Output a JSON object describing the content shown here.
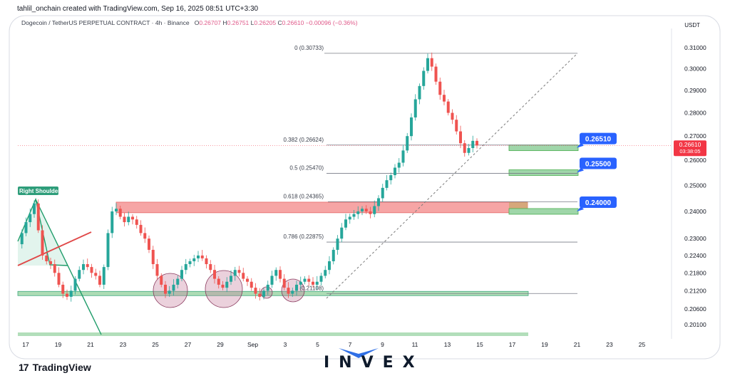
{
  "header": {
    "author_line": "tahlil_onchain created with TradingView.com, Sep 16, 2025 08:51 UTC+3:30",
    "symbol": "Dogecoin / TetherUS PERPETUAL CONTRACT · 4h · Binance",
    "ohlc": {
      "o_label": "O",
      "o": "0.26707",
      "h_label": "H",
      "h": "0.26751",
      "l_label": "L",
      "l": "0.26205",
      "c_label": "C",
      "c": "0.26610",
      "change": "−0.00096 (−0.36%)"
    },
    "currency": "USDT"
  },
  "chart_data": {
    "type": "candlestick",
    "timeframe": "4h",
    "y_axis": {
      "scale": "log",
      "range": [
        0.1975,
        0.3195
      ],
      "ticks": [
        "0.31000",
        "0.30000",
        "0.29000",
        "0.28000",
        "0.27000",
        "0.26000",
        "0.25000",
        "0.24000",
        "0.23000",
        "0.22400",
        "0.21800",
        "0.21200",
        "0.20600",
        "0.20100"
      ]
    },
    "x_axis": {
      "ticks": [
        "17",
        "19",
        "21",
        "23",
        "25",
        "27",
        "29",
        "Sep",
        "3",
        "5",
        "7",
        "9",
        "11",
        "13",
        "15",
        "17",
        "19",
        "21",
        "23",
        "25"
      ]
    },
    "current_price": {
      "value": "0.26610",
      "countdown": "03:38:05"
    },
    "close_path": [
      [
        0,
        0.228
      ],
      [
        1,
        0.232
      ],
      [
        2,
        0.236
      ],
      [
        3,
        0.239
      ],
      [
        4,
        0.243
      ],
      [
        5,
        0.233
      ],
      [
        6,
        0.224
      ],
      [
        7,
        0.222
      ],
      [
        8,
        0.221
      ],
      [
        9,
        0.218
      ],
      [
        10,
        0.214
      ],
      [
        11,
        0.211
      ],
      [
        12,
        0.21
      ],
      [
        13,
        0.212
      ],
      [
        14,
        0.216
      ],
      [
        15,
        0.219
      ],
      [
        16,
        0.221
      ],
      [
        17,
        0.22
      ],
      [
        18,
        0.218
      ],
      [
        19,
        0.217
      ],
      [
        20,
        0.214
      ],
      [
        21,
        0.22
      ],
      [
        22,
        0.232
      ],
      [
        23,
        0.24
      ],
      [
        24,
        0.241
      ],
      [
        25,
        0.238
      ],
      [
        26,
        0.236
      ],
      [
        27,
        0.238
      ],
      [
        28,
        0.237
      ],
      [
        29,
        0.235
      ],
      [
        30,
        0.232
      ],
      [
        31,
        0.23
      ],
      [
        32,
        0.226
      ],
      [
        33,
        0.221
      ],
      [
        34,
        0.217
      ],
      [
        35,
        0.214
      ],
      [
        36,
        0.211
      ],
      [
        37,
        0.212
      ],
      [
        38,
        0.214
      ],
      [
        39,
        0.216
      ],
      [
        40,
        0.219
      ],
      [
        41,
        0.221
      ],
      [
        42,
        0.222
      ],
      [
        43,
        0.223
      ],
      [
        44,
        0.224
      ],
      [
        45,
        0.223
      ],
      [
        46,
        0.221
      ],
      [
        47,
        0.219
      ],
      [
        48,
        0.216
      ],
      [
        49,
        0.214
      ],
      [
        50,
        0.213
      ],
      [
        51,
        0.215
      ],
      [
        52,
        0.217
      ],
      [
        53,
        0.219
      ],
      [
        54,
        0.218
      ],
      [
        55,
        0.216
      ],
      [
        56,
        0.215
      ],
      [
        57,
        0.213
      ],
      [
        58,
        0.211
      ],
      [
        59,
        0.21
      ],
      [
        60,
        0.212
      ],
      [
        61,
        0.214
      ],
      [
        62,
        0.217
      ],
      [
        63,
        0.219
      ],
      [
        64,
        0.216
      ],
      [
        65,
        0.213
      ],
      [
        66,
        0.211
      ],
      [
        67,
        0.212
      ],
      [
        68,
        0.214
      ],
      [
        69,
        0.215
      ],
      [
        70,
        0.216
      ],
      [
        71,
        0.215
      ],
      [
        72,
        0.214
      ],
      [
        73,
        0.215
      ],
      [
        74,
        0.217
      ],
      [
        75,
        0.219
      ],
      [
        76,
        0.222
      ],
      [
        77,
        0.226
      ],
      [
        78,
        0.23
      ],
      [
        79,
        0.234
      ],
      [
        80,
        0.237
      ],
      [
        81,
        0.238
      ],
      [
        82,
        0.239
      ],
      [
        83,
        0.24
      ],
      [
        84,
        0.241
      ],
      [
        85,
        0.24
      ],
      [
        86,
        0.239
      ],
      [
        87,
        0.242
      ],
      [
        88,
        0.245
      ],
      [
        89,
        0.249
      ],
      [
        90,
        0.252
      ],
      [
        91,
        0.254
      ],
      [
        92,
        0.257
      ],
      [
        93,
        0.259
      ],
      [
        94,
        0.264
      ],
      [
        95,
        0.27
      ],
      [
        96,
        0.278
      ],
      [
        97,
        0.286
      ],
      [
        98,
        0.292
      ],
      [
        99,
        0.299
      ],
      [
        100,
        0.305
      ],
      [
        101,
        0.301
      ],
      [
        102,
        0.294
      ],
      [
        103,
        0.288
      ],
      [
        104,
        0.285
      ],
      [
        105,
        0.28
      ],
      [
        106,
        0.277
      ],
      [
        107,
        0.272
      ],
      [
        108,
        0.267
      ],
      [
        109,
        0.263
      ],
      [
        110,
        0.265
      ],
      [
        111,
        0.268
      ],
      [
        112,
        0.2661
      ]
    ],
    "fibonacci": [
      {
        "label": "0 (0.30733)",
        "price": 0.30733
      },
      {
        "label": "0.382 (0.26624)",
        "price": 0.26624
      },
      {
        "label": "0.5 (0.25470)",
        "price": 0.2547
      },
      {
        "label": "0.618 (0.24365)",
        "price": 0.24365
      },
      {
        "label": "0.786 (0.22875)",
        "price": 0.22875
      },
      {
        "label": "1 (0.21108)",
        "price": 0.21108
      }
    ],
    "targets": [
      {
        "label": "0.26510",
        "price": 0.2651
      },
      {
        "label": "0.25500",
        "price": 0.255
      },
      {
        "label": "0.24000",
        "price": 0.24
      }
    ],
    "annotations": {
      "pattern_label": "Right Shoulder"
    },
    "colors": {
      "up": "#26a69a",
      "down": "#ef5350",
      "zone_red": "#f6a5a5",
      "zone_green": "#9fd6a9",
      "target_badge": "#2962ff",
      "price_badge": "#f23645",
      "fib_line": "#787b86",
      "trend_dash": "#7a7a7a",
      "neckline": "#1f9c6a"
    }
  },
  "branding": {
    "tradingview_mark": "17",
    "tradingview_name": "TradingView",
    "invex": "INVEX"
  }
}
